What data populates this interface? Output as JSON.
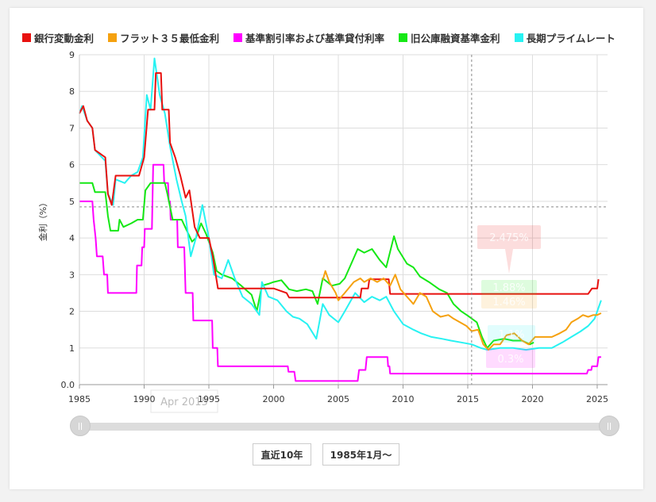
{
  "legend": [
    {
      "name": "銀行変動金利",
      "color": "#e8110f"
    },
    {
      "name": "フラット３５最低金利",
      "color": "#f5a10f"
    },
    {
      "name": "基準割引率および基準貸付利率",
      "color": "#ff00ff"
    },
    {
      "name": "旧公庫融資基準金利",
      "color": "#15e815"
    },
    {
      "name": "長期プライムレート",
      "color": "#27f2f2"
    }
  ],
  "buttons": {
    "recent10": "直近10年",
    "from1985": "1985年1月〜"
  },
  "crosshair": {
    "date_label": "Apr 2015",
    "x_value": 2015.3,
    "y_value": 4.85,
    "tooltips": [
      {
        "text": "2.475%",
        "value": 2.475,
        "color": "#e8110f"
      },
      {
        "text": "1.88%",
        "value": 1.88,
        "color": "#15e815"
      },
      {
        "text": "1.46%",
        "value": 1.46,
        "color": "#f5a10f"
      },
      {
        "text": "1.1%",
        "value": 1.1,
        "color": "#27f2f2"
      },
      {
        "text": "0.3%",
        "value": 0.3,
        "color": "#ff00ff"
      }
    ]
  },
  "chart_data": {
    "type": "line",
    "ylabel": "金利（%）",
    "xlabel": "",
    "xlim": [
      1985,
      2025.8
    ],
    "ylim": [
      0,
      9
    ],
    "grid": true,
    "legend_position": "top",
    "x_ticks": [
      1985,
      1990,
      1995,
      2000,
      2005,
      2010,
      2015,
      2020,
      2025
    ],
    "y_ticks": [
      {
        "v": 0,
        "label": "0.0"
      },
      {
        "v": 1,
        "label": "1"
      },
      {
        "v": 2,
        "label": "2"
      },
      {
        "v": 3,
        "label": "3"
      },
      {
        "v": 4,
        "label": "4"
      },
      {
        "v": 5,
        "label": "5"
      },
      {
        "v": 6,
        "label": "6"
      },
      {
        "v": 7,
        "label": "7"
      },
      {
        "v": 8,
        "label": "8"
      },
      {
        "v": 9,
        "label": "9"
      }
    ],
    "series": [
      {
        "name": "基準割引率および基準貸付利率",
        "color": "#ff00ff",
        "points": [
          [
            1985.0,
            5.0
          ],
          [
            1986.0,
            5.0
          ],
          [
            1986.1,
            4.5
          ],
          [
            1986.25,
            4.0
          ],
          [
            1986.35,
            3.5
          ],
          [
            1986.8,
            3.5
          ],
          [
            1986.9,
            3.0
          ],
          [
            1987.15,
            3.0
          ],
          [
            1987.2,
            2.5
          ],
          [
            1989.4,
            2.5
          ],
          [
            1989.45,
            3.25
          ],
          [
            1989.8,
            3.25
          ],
          [
            1989.85,
            3.75
          ],
          [
            1990.0,
            3.75
          ],
          [
            1990.05,
            4.25
          ],
          [
            1990.6,
            4.25
          ],
          [
            1990.7,
            6.0
          ],
          [
            1991.5,
            6.0
          ],
          [
            1991.55,
            5.5
          ],
          [
            1991.85,
            5.5
          ],
          [
            1991.9,
            5.0
          ],
          [
            1992.0,
            5.0
          ],
          [
            1992.05,
            4.5
          ],
          [
            1992.55,
            4.5
          ],
          [
            1992.6,
            3.75
          ],
          [
            1993.1,
            3.75
          ],
          [
            1993.2,
            2.5
          ],
          [
            1993.75,
            2.5
          ],
          [
            1993.8,
            1.75
          ],
          [
            1995.25,
            1.75
          ],
          [
            1995.3,
            1.0
          ],
          [
            1995.65,
            1.0
          ],
          [
            1995.7,
            0.5
          ],
          [
            2001.1,
            0.5
          ],
          [
            2001.15,
            0.35
          ],
          [
            2001.6,
            0.35
          ],
          [
            2001.7,
            0.1
          ],
          [
            2006.5,
            0.1
          ],
          [
            2006.6,
            0.4
          ],
          [
            2007.1,
            0.4
          ],
          [
            2007.2,
            0.75
          ],
          [
            2008.8,
            0.75
          ],
          [
            2008.85,
            0.5
          ],
          [
            2008.95,
            0.5
          ],
          [
            2009.0,
            0.3
          ],
          [
            2024.2,
            0.3
          ],
          [
            2024.3,
            0.4
          ],
          [
            2024.55,
            0.4
          ],
          [
            2024.6,
            0.5
          ],
          [
            2025.0,
            0.5
          ],
          [
            2025.1,
            0.75
          ],
          [
            2025.3,
            0.75
          ]
        ]
      },
      {
        "name": "旧公庫融資基準金利",
        "color": "#15e815",
        "points": [
          [
            1985.0,
            5.5
          ],
          [
            1986.0,
            5.5
          ],
          [
            1986.2,
            5.25
          ],
          [
            1987.0,
            5.25
          ],
          [
            1987.2,
            4.6
          ],
          [
            1987.4,
            4.2
          ],
          [
            1988.0,
            4.2
          ],
          [
            1988.1,
            4.5
          ],
          [
            1988.4,
            4.3
          ],
          [
            1989.0,
            4.4
          ],
          [
            1989.5,
            4.5
          ],
          [
            1989.9,
            4.5
          ],
          [
            1990.1,
            5.3
          ],
          [
            1990.5,
            5.5
          ],
          [
            1991.6,
            5.5
          ],
          [
            1991.8,
            5.2
          ],
          [
            1992.2,
            4.5
          ],
          [
            1992.9,
            4.5
          ],
          [
            1993.3,
            4.2
          ],
          [
            1993.7,
            3.9
          ],
          [
            1994.0,
            4.0
          ],
          [
            1994.4,
            4.4
          ],
          [
            1994.8,
            4.1
          ],
          [
            1995.3,
            3.6
          ],
          [
            1995.6,
            3.1
          ],
          [
            1996.0,
            3.0
          ],
          [
            1996.8,
            2.9
          ],
          [
            1997.5,
            2.7
          ],
          [
            1998.3,
            2.45
          ],
          [
            1998.7,
            2.0
          ],
          [
            1999.1,
            2.7
          ],
          [
            1999.6,
            2.75
          ],
          [
            2000.0,
            2.8
          ],
          [
            2000.6,
            2.85
          ],
          [
            2001.2,
            2.6
          ],
          [
            2001.8,
            2.55
          ],
          [
            2002.5,
            2.6
          ],
          [
            2003.0,
            2.55
          ],
          [
            2003.4,
            2.2
          ],
          [
            2003.8,
            2.9
          ],
          [
            2004.5,
            2.7
          ],
          [
            2005.1,
            2.75
          ],
          [
            2005.5,
            2.9
          ],
          [
            2006.0,
            3.3
          ],
          [
            2006.5,
            3.7
          ],
          [
            2007.0,
            3.6
          ],
          [
            2007.6,
            3.7
          ],
          [
            2008.2,
            3.4
          ],
          [
            2008.7,
            3.2
          ],
          [
            2009.3,
            4.05
          ],
          [
            2009.6,
            3.7
          ],
          [
            2010.3,
            3.3
          ],
          [
            2010.8,
            3.2
          ],
          [
            2011.3,
            2.95
          ],
          [
            2012.0,
            2.8
          ],
          [
            2012.8,
            2.6
          ],
          [
            2013.4,
            2.5
          ],
          [
            2013.9,
            2.2
          ],
          [
            2014.5,
            2.0
          ],
          [
            2015.0,
            1.88
          ],
          [
            2015.7,
            1.7
          ],
          [
            2016.1,
            1.3
          ],
          [
            2016.5,
            1.0
          ],
          [
            2017.0,
            1.2
          ],
          [
            2017.8,
            1.25
          ],
          [
            2018.5,
            1.2
          ],
          [
            2019.2,
            1.2
          ],
          [
            2019.8,
            1.1
          ],
          [
            2020.1,
            1.15
          ]
        ]
      },
      {
        "name": "長期プライムレート",
        "color": "#27f2f2",
        "points": [
          [
            1985.0,
            7.4
          ],
          [
            1985.2,
            7.6
          ],
          [
            1985.6,
            7.2
          ],
          [
            1986.0,
            7.0
          ],
          [
            1986.2,
            6.4
          ],
          [
            1987.0,
            6.1
          ],
          [
            1987.2,
            5.2
          ],
          [
            1987.6,
            4.9
          ],
          [
            1987.8,
            5.6
          ],
          [
            1988.5,
            5.5
          ],
          [
            1989.0,
            5.7
          ],
          [
            1989.5,
            5.8
          ],
          [
            1989.9,
            6.2
          ],
          [
            1990.2,
            7.9
          ],
          [
            1990.5,
            7.5
          ],
          [
            1990.8,
            8.9
          ],
          [
            1991.2,
            7.9
          ],
          [
            1991.6,
            7.4
          ],
          [
            1992.0,
            6.5
          ],
          [
            1992.5,
            5.6
          ],
          [
            1992.9,
            5.0
          ],
          [
            1993.2,
            4.6
          ],
          [
            1993.6,
            3.5
          ],
          [
            1994.0,
            4.0
          ],
          [
            1994.5,
            4.9
          ],
          [
            1995.0,
            4.0
          ],
          [
            1995.4,
            3.0
          ],
          [
            1996.0,
            2.9
          ],
          [
            1996.5,
            3.4
          ],
          [
            1997.0,
            2.9
          ],
          [
            1997.6,
            2.4
          ],
          [
            1998.3,
            2.2
          ],
          [
            1998.9,
            1.9
          ],
          [
            1999.1,
            2.8
          ],
          [
            1999.6,
            2.4
          ],
          [
            2000.3,
            2.3
          ],
          [
            2001.0,
            2.0
          ],
          [
            2001.5,
            1.85
          ],
          [
            2002.0,
            1.8
          ],
          [
            2002.6,
            1.65
          ],
          [
            2003.3,
            1.25
          ],
          [
            2003.8,
            2.2
          ],
          [
            2004.3,
            1.9
          ],
          [
            2005.0,
            1.7
          ],
          [
            2005.5,
            2.0
          ],
          [
            2006.3,
            2.5
          ],
          [
            2007.0,
            2.25
          ],
          [
            2007.6,
            2.4
          ],
          [
            2008.2,
            2.3
          ],
          [
            2008.7,
            2.4
          ],
          [
            2009.3,
            2.0
          ],
          [
            2010.0,
            1.65
          ],
          [
            2010.8,
            1.5
          ],
          [
            2011.4,
            1.4
          ],
          [
            2012.2,
            1.3
          ],
          [
            2013.0,
            1.25
          ],
          [
            2013.7,
            1.2
          ],
          [
            2014.5,
            1.15
          ],
          [
            2015.3,
            1.1
          ],
          [
            2016.0,
            1.0
          ],
          [
            2016.5,
            0.95
          ],
          [
            2017.5,
            1.0
          ],
          [
            2018.5,
            1.0
          ],
          [
            2019.5,
            0.95
          ],
          [
            2020.5,
            1.0
          ],
          [
            2021.5,
            1.0
          ],
          [
            2022.3,
            1.15
          ],
          [
            2023.0,
            1.3
          ],
          [
            2023.7,
            1.45
          ],
          [
            2024.3,
            1.6
          ],
          [
            2024.8,
            1.8
          ],
          [
            2025.0,
            2.0
          ],
          [
            2025.3,
            2.3
          ]
        ]
      },
      {
        "name": "銀行変動金利",
        "color": "#e8110f",
        "points": [
          [
            1985.0,
            7.4
          ],
          [
            1985.3,
            7.6
          ],
          [
            1985.6,
            7.2
          ],
          [
            1986.0,
            7.0
          ],
          [
            1986.2,
            6.4
          ],
          [
            1987.0,
            6.2
          ],
          [
            1987.2,
            5.2
          ],
          [
            1987.5,
            4.9
          ],
          [
            1987.8,
            5.7
          ],
          [
            1988.5,
            5.7
          ],
          [
            1989.0,
            5.7
          ],
          [
            1989.6,
            5.7
          ],
          [
            1990.0,
            6.2
          ],
          [
            1990.3,
            7.5
          ],
          [
            1990.8,
            7.5
          ],
          [
            1990.9,
            8.5
          ],
          [
            1991.3,
            8.5
          ],
          [
            1991.4,
            7.5
          ],
          [
            1991.9,
            7.5
          ],
          [
            1992.0,
            6.6
          ],
          [
            1992.4,
            6.2
          ],
          [
            1992.8,
            5.7
          ],
          [
            1993.2,
            5.1
          ],
          [
            1993.5,
            5.3
          ],
          [
            1993.9,
            4.3
          ],
          [
            1994.3,
            4.0
          ],
          [
            1994.8,
            4.0
          ],
          [
            1995.0,
            4.0
          ],
          [
            1995.3,
            3.5
          ],
          [
            1995.7,
            2.625
          ],
          [
            2000.0,
            2.625
          ],
          [
            2001.0,
            2.5
          ],
          [
            2001.2,
            2.375
          ],
          [
            2006.7,
            2.375
          ],
          [
            2006.8,
            2.625
          ],
          [
            2007.3,
            2.625
          ],
          [
            2007.4,
            2.875
          ],
          [
            2008.9,
            2.875
          ],
          [
            2009.0,
            2.475
          ],
          [
            2024.3,
            2.475
          ],
          [
            2024.6,
            2.625
          ],
          [
            2025.0,
            2.625
          ],
          [
            2025.1,
            2.875
          ]
        ]
      },
      {
        "name": "フラット３５最低金利",
        "color": "#f5a10f",
        "points": [
          [
            2003.8,
            2.85
          ],
          [
            2004.0,
            3.1
          ],
          [
            2004.3,
            2.8
          ],
          [
            2004.8,
            2.5
          ],
          [
            2005.0,
            2.3
          ],
          [
            2005.5,
            2.5
          ],
          [
            2006.2,
            2.8
          ],
          [
            2006.7,
            2.9
          ],
          [
            2007.0,
            2.8
          ],
          [
            2007.5,
            2.9
          ],
          [
            2008.0,
            2.8
          ],
          [
            2008.5,
            2.9
          ],
          [
            2009.0,
            2.7
          ],
          [
            2009.4,
            3.0
          ],
          [
            2009.8,
            2.6
          ],
          [
            2010.3,
            2.4
          ],
          [
            2010.8,
            2.2
          ],
          [
            2011.3,
            2.5
          ],
          [
            2011.8,
            2.4
          ],
          [
            2012.3,
            2.0
          ],
          [
            2012.9,
            1.85
          ],
          [
            2013.5,
            1.9
          ],
          [
            2013.9,
            1.8
          ],
          [
            2014.4,
            1.7
          ],
          [
            2014.9,
            1.6
          ],
          [
            2015.3,
            1.46
          ],
          [
            2015.8,
            1.5
          ],
          [
            2016.2,
            1.1
          ],
          [
            2016.6,
            0.95
          ],
          [
            2017.0,
            1.1
          ],
          [
            2017.5,
            1.1
          ],
          [
            2018.0,
            1.35
          ],
          [
            2018.6,
            1.4
          ],
          [
            2019.2,
            1.2
          ],
          [
            2019.7,
            1.1
          ],
          [
            2020.2,
            1.3
          ],
          [
            2020.8,
            1.3
          ],
          [
            2021.5,
            1.3
          ],
          [
            2022.1,
            1.4
          ],
          [
            2022.6,
            1.5
          ],
          [
            2023.0,
            1.7
          ],
          [
            2023.5,
            1.8
          ],
          [
            2023.9,
            1.9
          ],
          [
            2024.3,
            1.85
          ],
          [
            2024.7,
            1.9
          ],
          [
            2025.0,
            1.9
          ],
          [
            2025.3,
            1.95
          ]
        ]
      }
    ]
  }
}
